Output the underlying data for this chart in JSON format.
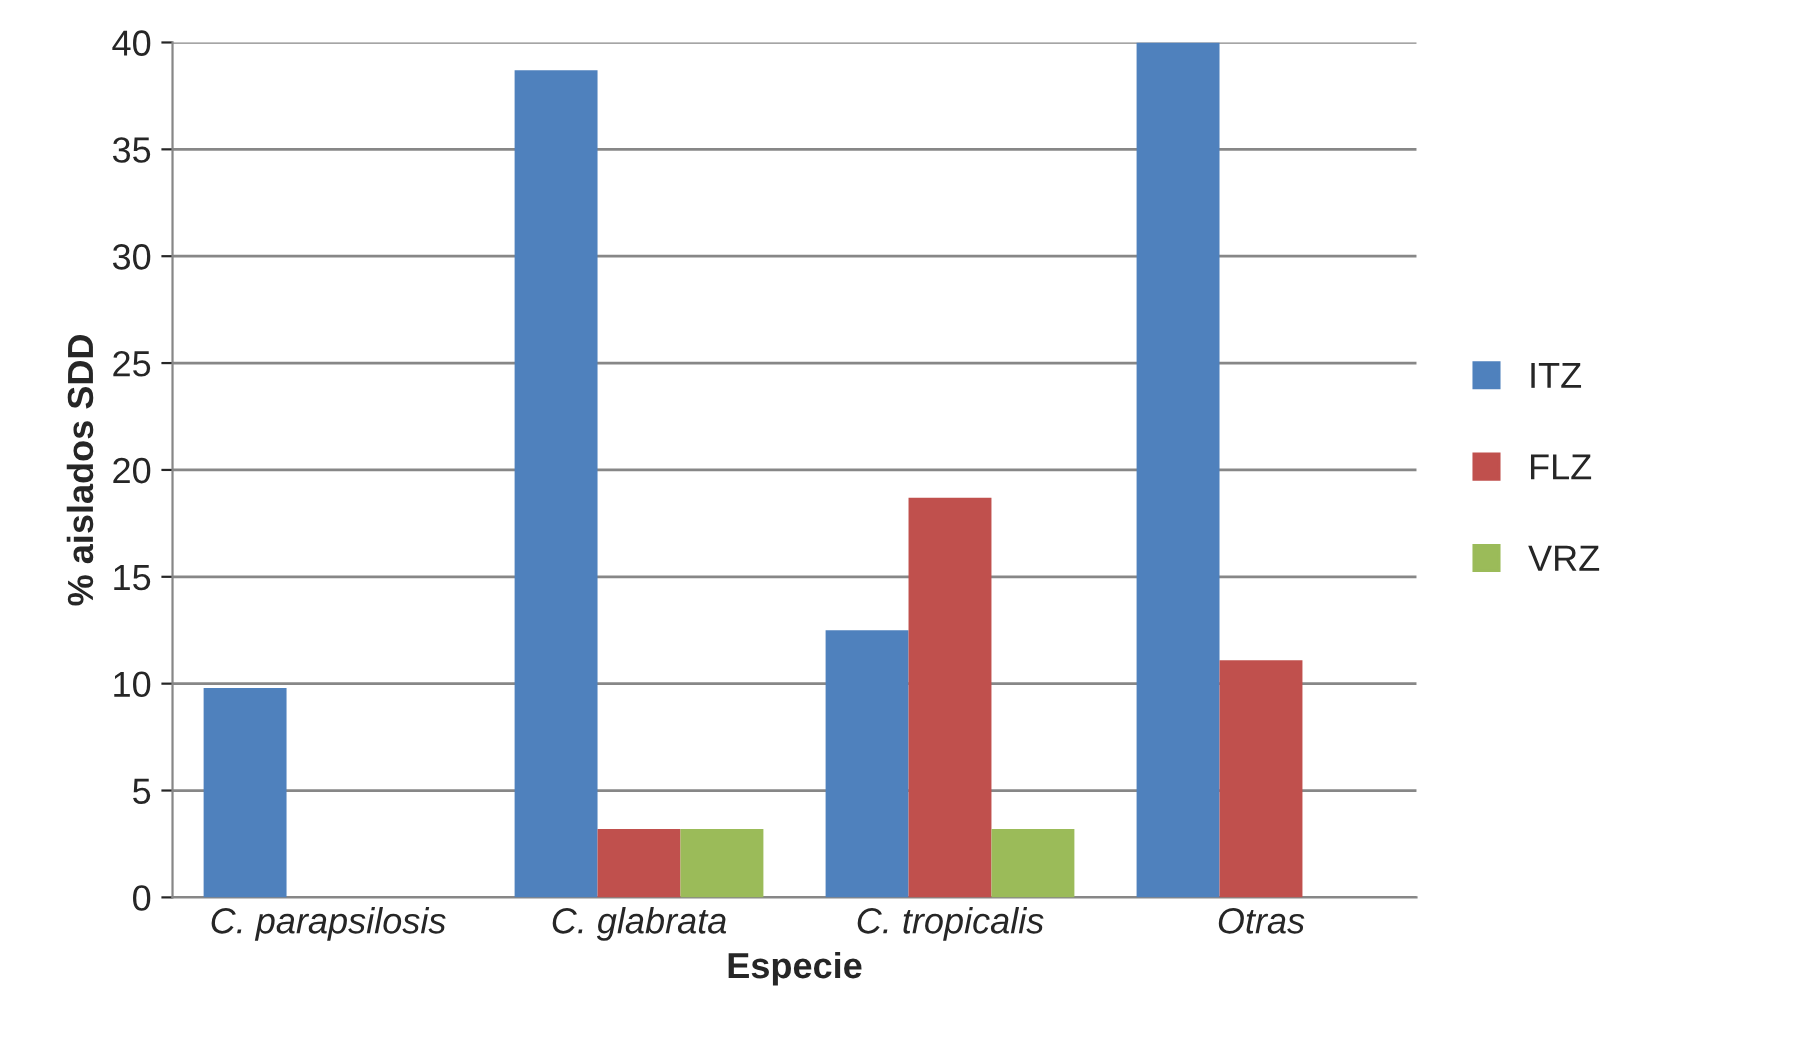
{
  "chart_data": {
    "type": "bar",
    "xlabel": "Especie",
    "ylabel": "% aislados SDD",
    "categories": [
      "C. parapsilosis",
      "C. glabrata",
      "C. tropicalis",
      "Otras"
    ],
    "series": [
      {
        "name": "ITZ",
        "color": "#4f81bd",
        "values": [
          9.8,
          38.7,
          12.5,
          40
        ]
      },
      {
        "name": "FLZ",
        "color": "#c0504d",
        "values": [
          null,
          3.2,
          18.7,
          11.1
        ]
      },
      {
        "name": "VRZ",
        "color": "#9bbb59",
        "values": [
          null,
          3.2,
          3.2,
          null
        ]
      }
    ],
    "ylim": [
      0,
      40
    ],
    "yticks": [
      0,
      5,
      10,
      15,
      20,
      25,
      30,
      35,
      40
    ],
    "grid": "y",
    "legend": "right"
  }
}
